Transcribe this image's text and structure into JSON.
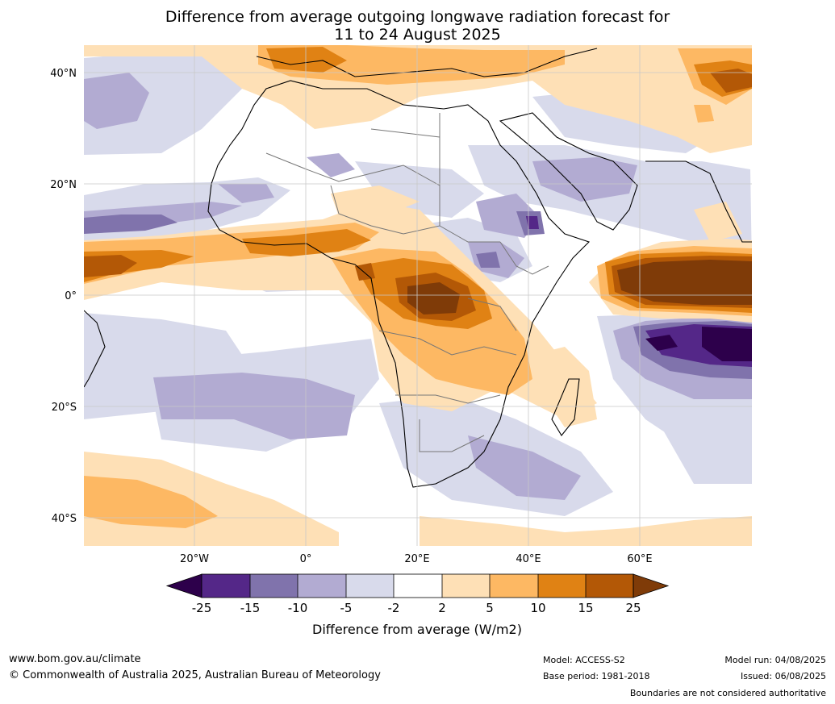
{
  "title": {
    "line1": "Difference from average outgoing longwave radiation forecast for",
    "line2": "11 to 24 August 2025"
  },
  "map": {
    "lat_ticks": [
      "40°N",
      "20°N",
      "0°",
      "20°S",
      "40°S"
    ],
    "lon_ticks": [
      "20°W",
      "0°",
      "20°E",
      "40°E",
      "60°E"
    ]
  },
  "colorbar": {
    "label": "Difference from average (W/m2)",
    "ticks": [
      "-25",
      "-15",
      "-10",
      "-5",
      "-2",
      "2",
      "5",
      "10",
      "15",
      "25"
    ],
    "colors": [
      "#2d004b",
      "#542788",
      "#8073ac",
      "#b2abd2",
      "#d8daeb",
      "#ffffff",
      "#fee0b6",
      "#fdb863",
      "#e08214",
      "#b35806",
      "#7f3b08"
    ]
  },
  "footer": {
    "website": "www.bom.gov.au/climate",
    "copyright": "© Commonwealth of Australia 2025, Australian Bureau of Meteorology",
    "model": "Model: ACCESS-S2",
    "base_period": "Base period: 1981-2018",
    "model_run": "Model run: 04/08/2025",
    "issued": "Issued: 06/08/2025",
    "disclaimer": "Boundaries are not considered authoritative"
  }
}
